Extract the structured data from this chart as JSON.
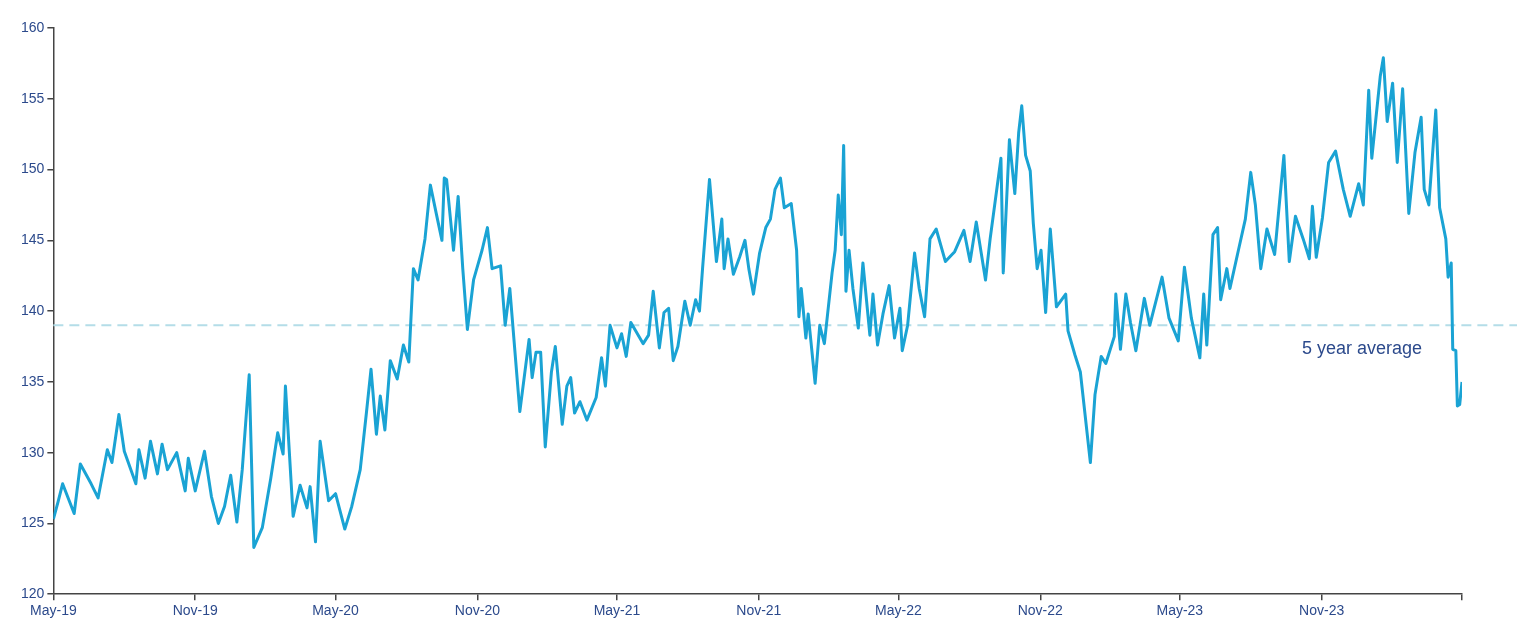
{
  "chart_data": {
    "type": "line",
    "x": [
      "2019-05-01",
      "2019-05-07",
      "2019-05-13",
      "2019-05-28",
      "2019-06-05",
      "2019-06-19",
      "2019-06-28",
      "2019-07-10",
      "2019-07-16",
      "2019-07-25",
      "2019-08-01",
      "2019-08-16",
      "2019-08-20",
      "2019-08-28",
      "2019-09-04",
      "2019-09-13",
      "2019-09-19",
      "2019-09-26",
      "2019-10-08",
      "2019-10-19",
      "2019-10-23",
      "2019-11-01",
      "2019-11-13",
      "2019-11-22",
      "2019-12-01",
      "2019-12-09",
      "2019-12-17",
      "2019-12-25",
      "2020-01-01",
      "2020-01-10",
      "2020-01-16",
      "2020-01-27",
      "2020-02-07",
      "2020-02-16",
      "2020-02-23",
      "2020-02-26",
      "2020-03-07",
      "2020-03-16",
      "2020-03-25",
      "2020-03-29",
      "2020-04-05",
      "2020-04-11",
      "2020-04-22",
      "2020-05-01",
      "2020-05-13",
      "2020-05-22",
      "2020-06-02",
      "2020-06-10",
      "2020-06-16",
      "2020-06-23",
      "2020-06-28",
      "2020-07-04",
      "2020-07-11",
      "2020-07-20",
      "2020-07-28",
      "2020-08-04",
      "2020-08-10",
      "2020-08-16",
      "2020-08-25",
      "2020-09-01",
      "2020-09-09",
      "2020-09-16",
      "2020-09-19",
      "2020-09-22",
      "2020-10-01",
      "2020-10-07",
      "2020-10-13",
      "2020-10-19",
      "2020-10-27",
      "2020-11-07",
      "2020-11-14",
      "2020-11-20",
      "2020-12-01",
      "2020-12-07",
      "2020-12-13",
      "2020-12-26",
      "2021-01-07",
      "2021-01-11",
      "2021-01-16",
      "2021-01-22",
      "2021-01-28",
      "2021-02-05",
      "2021-02-10",
      "2021-02-19",
      "2021-02-25",
      "2021-03-02",
      "2021-03-07",
      "2021-03-14",
      "2021-03-23",
      "2021-04-04",
      "2021-04-11",
      "2021-04-16",
      "2021-04-22",
      "2021-05-01",
      "2021-05-07",
      "2021-05-13",
      "2021-05-19",
      "2021-06-04",
      "2021-06-11",
      "2021-06-17",
      "2021-06-25",
      "2021-07-01",
      "2021-07-07",
      "2021-07-13",
      "2021-07-19",
      "2021-07-28",
      "2021-08-04",
      "2021-08-11",
      "2021-08-16",
      "2021-08-20",
      "2021-08-29",
      "2021-09-07",
      "2021-09-14",
      "2021-09-17",
      "2021-09-22",
      "2021-09-29",
      "2021-10-07",
      "2021-10-14",
      "2021-10-19",
      "2021-10-25",
      "2021-11-02",
      "2021-11-10",
      "2021-11-16",
      "2021-11-22",
      "2021-11-29",
      "2021-12-04",
      "2021-12-13",
      "2021-12-20",
      "2021-12-23",
      "2021-12-26",
      "2022-01-01",
      "2022-01-04",
      "2022-01-13",
      "2022-01-19",
      "2022-01-25",
      "2022-02-04",
      "2022-02-08",
      "2022-02-12",
      "2022-02-16",
      "2022-02-19",
      "2022-02-22",
      "2022-02-26",
      "2022-03-03",
      "2022-03-10",
      "2022-03-16",
      "2022-03-25",
      "2022-03-29",
      "2022-04-04",
      "2022-04-11",
      "2022-04-19",
      "2022-04-26",
      "2022-05-03",
      "2022-05-06",
      "2022-05-13",
      "2022-05-22",
      "2022-05-28",
      "2022-06-04",
      "2022-06-11",
      "2022-06-19",
      "2022-07-01",
      "2022-07-13",
      "2022-07-25",
      "2022-08-02",
      "2022-08-10",
      "2022-08-22",
      "2022-08-28",
      "2022-09-11",
      "2022-09-14",
      "2022-09-22",
      "2022-09-29",
      "2022-10-04",
      "2022-10-08",
      "2022-10-13",
      "2022-10-19",
      "2022-10-23",
      "2022-10-28",
      "2022-11-02",
      "2022-11-08",
      "2022-11-14",
      "2022-11-22",
      "2022-12-04",
      "2022-12-07",
      "2022-12-16",
      "2022-12-23",
      "2023-01-05",
      "2023-01-11",
      "2023-01-19",
      "2023-01-25",
      "2023-02-05",
      "2023-02-07",
      "2023-02-13",
      "2023-02-20",
      "2023-02-26",
      "2023-03-05",
      "2023-03-16",
      "2023-03-23",
      "2023-04-08",
      "2023-04-17",
      "2023-04-29",
      "2023-05-07",
      "2023-05-16",
      "2023-05-27",
      "2023-06-01",
      "2023-06-05",
      "2023-06-13",
      "2023-06-19",
      "2023-06-23",
      "2023-07-01",
      "2023-07-05",
      "2023-07-16",
      "2023-07-25",
      "2023-08-01",
      "2023-08-07",
      "2023-08-14",
      "2023-08-22",
      "2023-09-01",
      "2023-09-13",
      "2023-09-20",
      "2023-09-28",
      "2023-10-08",
      "2023-10-16",
      "2023-10-20",
      "2023-10-25",
      "2023-11-02",
      "2023-11-10",
      "2023-11-19",
      "2023-11-29",
      "2023-12-08",
      "2023-12-19",
      "2023-12-25",
      "2024-01-01",
      "2024-01-05",
      "2024-01-16",
      "2024-01-20",
      "2024-01-25",
      "2024-02-01",
      "2024-02-07",
      "2024-02-14",
      "2024-02-22",
      "2024-03-01",
      "2024-03-09",
      "2024-03-13",
      "2024-03-19",
      "2024-03-28",
      "2024-04-02",
      "2024-04-10",
      "2024-04-13",
      "2024-04-17",
      "2024-04-19",
      "2024-04-23",
      "2024-04-25",
      "2024-04-28",
      "2024-05-01"
    ],
    "series": [
      {
        "color": "#1aa3d4",
        "values": [
          125.3,
          126.5,
          127.8,
          125.7,
          129.2,
          127.8,
          126.8,
          130.2,
          129.3,
          132.7,
          130.1,
          127.8,
          130.2,
          128.2,
          130.8,
          128.5,
          130.6,
          128.8,
          130.0,
          127.3,
          129.6,
          127.3,
          130.1,
          126.9,
          125.0,
          126.2,
          128.4,
          125.1,
          128.8,
          135.5,
          123.3,
          124.7,
          128.2,
          131.4,
          129.9,
          134.7,
          125.5,
          127.7,
          126.1,
          127.6,
          123.7,
          130.8,
          126.6,
          127.1,
          124.6,
          126.2,
          128.8,
          132.8,
          135.9,
          131.3,
          134.0,
          131.6,
          136.5,
          135.2,
          137.6,
          136.4,
          143.0,
          142.2,
          145.1,
          148.9,
          146.8,
          145.0,
          149.4,
          149.3,
          144.3,
          148.1,
          143.0,
          138.7,
          142.2,
          144.3,
          145.9,
          143.0,
          143.2,
          139.0,
          141.6,
          132.9,
          138.0,
          135.3,
          137.1,
          137.1,
          130.4,
          135.7,
          137.5,
          132.0,
          134.7,
          135.3,
          132.8,
          133.6,
          132.3,
          133.9,
          136.7,
          134.7,
          139.0,
          137.4,
          138.4,
          136.8,
          139.2,
          137.7,
          138.3,
          141.4,
          137.4,
          139.9,
          140.2,
          136.5,
          137.5,
          140.7,
          139.0,
          140.8,
          140.0,
          143.0,
          149.3,
          143.5,
          146.5,
          143.0,
          145.1,
          142.6,
          143.8,
          145.0,
          143.0,
          141.2,
          144.1,
          145.9,
          146.5,
          148.6,
          149.4,
          147.3,
          147.6,
          144.3,
          139.6,
          141.6,
          138.1,
          139.8,
          134.9,
          139.0,
          137.7,
          142.7,
          144.3,
          148.2,
          145.4,
          151.7,
          141.4,
          144.3,
          141.6,
          138.8,
          143.4,
          138.3,
          141.2,
          137.6,
          139.8,
          141.8,
          138.1,
          140.2,
          137.2,
          139.0,
          144.1,
          141.6,
          139.6,
          145.1,
          145.8,
          143.5,
          144.2,
          145.7,
          143.5,
          146.3,
          142.2,
          145.1,
          150.8,
          142.7,
          152.1,
          148.3,
          152.6,
          154.5,
          151.0,
          149.9,
          146.2,
          143.0,
          144.3,
          139.9,
          145.8,
          140.3,
          141.2,
          138.6,
          136.9,
          135.7,
          129.3,
          134.1,
          136.8,
          136.3,
          138.2,
          141.2,
          137.3,
          141.2,
          139.2,
          137.2,
          140.9,
          139.0,
          142.4,
          139.5,
          137.9,
          143.1,
          139.5,
          136.7,
          141.2,
          137.6,
          145.4,
          145.9,
          140.8,
          143.0,
          141.6,
          144.3,
          146.5,
          149.8,
          147.5,
          143.0,
          145.8,
          144.0,
          151.0,
          143.5,
          146.7,
          145.1,
          143.7,
          147.4,
          143.8,
          146.6,
          150.5,
          151.3,
          148.6,
          146.7,
          149.0,
          147.5,
          155.6,
          150.8,
          156.6,
          157.9,
          153.4,
          156.1,
          150.5,
          155.7,
          146.9,
          151.2,
          153.7,
          148.6,
          147.5,
          154.2,
          147.3,
          145.1,
          142.4,
          143.4,
          137.3,
          137.2,
          133.3,
          133.4,
          135.0
        ]
      }
    ],
    "xlim": [
      "2019-05-01",
      "2024-05-01"
    ],
    "xticks": [
      {
        "value": "2019-05-01",
        "label": "May-19"
      },
      {
        "value": "2019-11-01",
        "label": "Nov-19"
      },
      {
        "value": "2020-05-01",
        "label": "May-20"
      },
      {
        "value": "2020-11-01",
        "label": "Nov-20"
      },
      {
        "value": "2021-05-01",
        "label": "May-21"
      },
      {
        "value": "2021-11-01",
        "label": "Nov-21"
      },
      {
        "value": "2022-05-01",
        "label": "May-22"
      },
      {
        "value": "2022-11-01",
        "label": "Nov-22"
      },
      {
        "value": "2023-05-01",
        "label": "May-23"
      },
      {
        "value": "2023-11-01",
        "label": "Nov-23"
      },
      {
        "value": "2024-05-01",
        "label": null
      }
    ],
    "ylim": [
      120,
      160
    ],
    "yticks": [
      120,
      125,
      130,
      135,
      140,
      145,
      150,
      155,
      160
    ],
    "ref_lines": [
      {
        "axis": "y",
        "value": 139,
        "label": "5 year average",
        "color": "#b4dde8",
        "line_style": "dashed"
      }
    ],
    "grid": false,
    "legend": false,
    "marker": "none",
    "line_style": "solid"
  }
}
